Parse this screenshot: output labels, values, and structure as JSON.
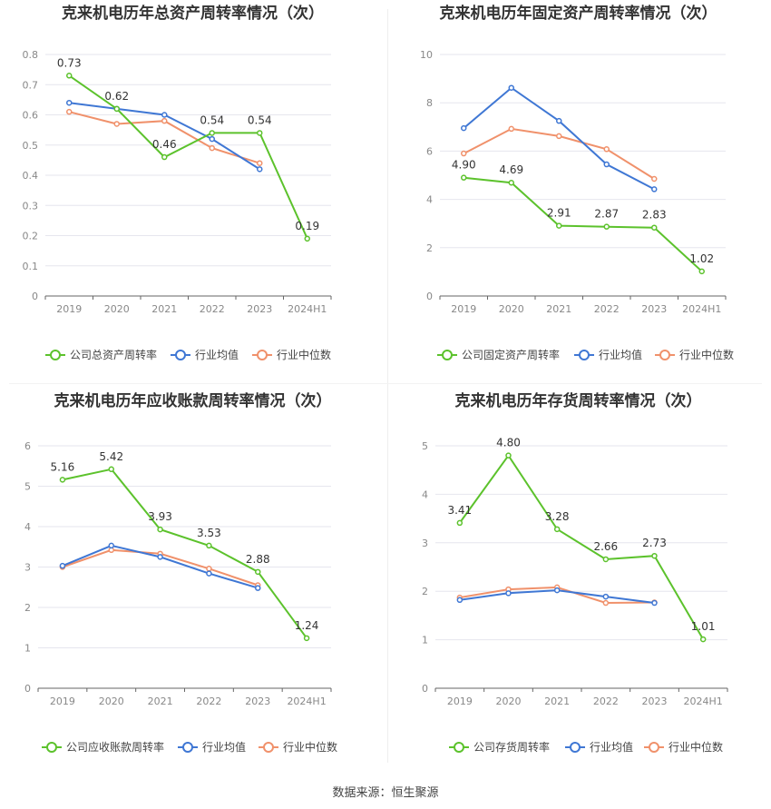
{
  "source": "数据来源：恒生聚源",
  "colors": {
    "company": "#5CC22C",
    "industry_avg": "#3F77D4",
    "industry_median": "#F0916B",
    "grid": "#E6E6EE",
    "axis_text": "#888888",
    "title": "#333333"
  },
  "chart_data": [
    {
      "type": "line",
      "title": "克来机电历年总资产周转率情况（次）",
      "categories": [
        "2019",
        "2020",
        "2021",
        "2022",
        "2023",
        "2024H1"
      ],
      "yticks": [
        "0",
        "0.1",
        "0.2",
        "0.3",
        "0.4",
        "0.5",
        "0.6",
        "0.7",
        "0.8"
      ],
      "ylim": [
        0,
        0.8
      ],
      "series": [
        {
          "name": "公司总资产周转率",
          "key": "company",
          "values": [
            0.73,
            0.62,
            0.46,
            0.54,
            0.54,
            0.19
          ],
          "labels": [
            "0.73",
            "0.62",
            "0.46",
            "0.54",
            "0.54",
            "0.19"
          ]
        },
        {
          "name": "行业均值",
          "key": "industry_avg",
          "values": [
            0.64,
            0.62,
            0.6,
            0.52,
            0.42,
            null
          ]
        },
        {
          "name": "行业中位数",
          "key": "industry_median",
          "values": [
            0.61,
            0.57,
            0.58,
            0.49,
            0.44,
            null
          ]
        }
      ]
    },
    {
      "type": "line",
      "title": "克来机电历年固定资产周转率情况（次）",
      "categories": [
        "2019",
        "2020",
        "2021",
        "2022",
        "2023",
        "2024H1"
      ],
      "yticks": [
        "0",
        "2",
        "4",
        "6",
        "8",
        "10"
      ],
      "ylim": [
        0,
        10
      ],
      "series": [
        {
          "name": "公司固定资产周转率",
          "key": "company",
          "values": [
            4.9,
            4.69,
            2.91,
            2.87,
            2.83,
            1.02
          ],
          "labels": [
            "4.90",
            "4.69",
            "2.91",
            "2.87",
            "2.83",
            "1.02"
          ]
        },
        {
          "name": "行业均值",
          "key": "industry_avg",
          "values": [
            6.95,
            8.62,
            7.25,
            5.45,
            4.42,
            null
          ]
        },
        {
          "name": "行业中位数",
          "key": "industry_median",
          "values": [
            5.9,
            6.92,
            6.62,
            6.08,
            4.85,
            null
          ]
        }
      ]
    },
    {
      "type": "line",
      "title": "克来机电历年应收账款周转率情况（次）",
      "categories": [
        "2019",
        "2020",
        "2021",
        "2022",
        "2023",
        "2024H1"
      ],
      "yticks": [
        "0",
        "1",
        "2",
        "3",
        "4",
        "5",
        "6"
      ],
      "ylim": [
        0,
        6
      ],
      "series": [
        {
          "name": "公司应收账款周转率",
          "key": "company",
          "values": [
            5.16,
            5.42,
            3.93,
            3.53,
            2.88,
            1.24
          ],
          "labels": [
            "5.16",
            "5.42",
            "3.93",
            "3.53",
            "2.88",
            "1.24"
          ]
        },
        {
          "name": "行业均值",
          "key": "industry_avg",
          "values": [
            3.03,
            3.53,
            3.25,
            2.84,
            2.48,
            null
          ]
        },
        {
          "name": "行业中位数",
          "key": "industry_median",
          "values": [
            3.0,
            3.42,
            3.33,
            2.96,
            2.55,
            null
          ]
        }
      ]
    },
    {
      "type": "line",
      "title": "克来机电历年存货周转率情况（次）",
      "categories": [
        "2019",
        "2020",
        "2021",
        "2022",
        "2023",
        "2024H1"
      ],
      "yticks": [
        "0",
        "1",
        "2",
        "3",
        "4",
        "5"
      ],
      "ylim": [
        0,
        5
      ],
      "series": [
        {
          "name": "公司存货周转率",
          "key": "company",
          "values": [
            3.41,
            4.8,
            3.28,
            2.66,
            2.73,
            1.01
          ],
          "labels": [
            "3.41",
            "4.80",
            "3.28",
            "2.66",
            "2.73",
            "1.01"
          ]
        },
        {
          "name": "行业均值",
          "key": "industry_avg",
          "values": [
            1.82,
            1.96,
            2.02,
            1.89,
            1.76,
            null
          ]
        },
        {
          "name": "行业中位数",
          "key": "industry_median",
          "values": [
            1.87,
            2.04,
            2.08,
            1.76,
            1.77,
            null
          ]
        }
      ]
    }
  ]
}
